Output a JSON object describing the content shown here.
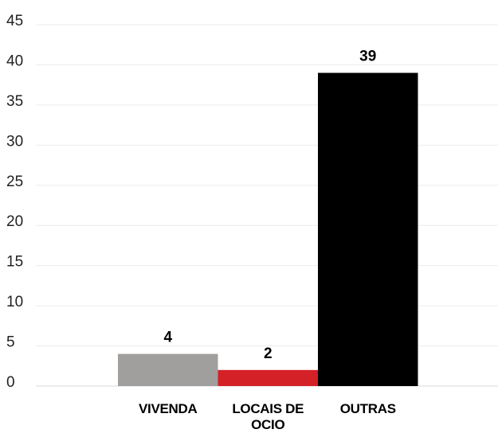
{
  "chart_data": {
    "type": "bar",
    "categories": [
      "VIVENDA",
      "LOCAIS DE OCIO",
      "OUTRAS"
    ],
    "values": [
      4,
      2,
      39
    ],
    "colors": [
      "#a09f9d",
      "#d42027",
      "#000000"
    ],
    "ylim": [
      0,
      45
    ],
    "yticks": [
      0,
      5,
      10,
      15,
      20,
      25,
      30,
      35,
      40,
      45
    ],
    "grid": true
  }
}
